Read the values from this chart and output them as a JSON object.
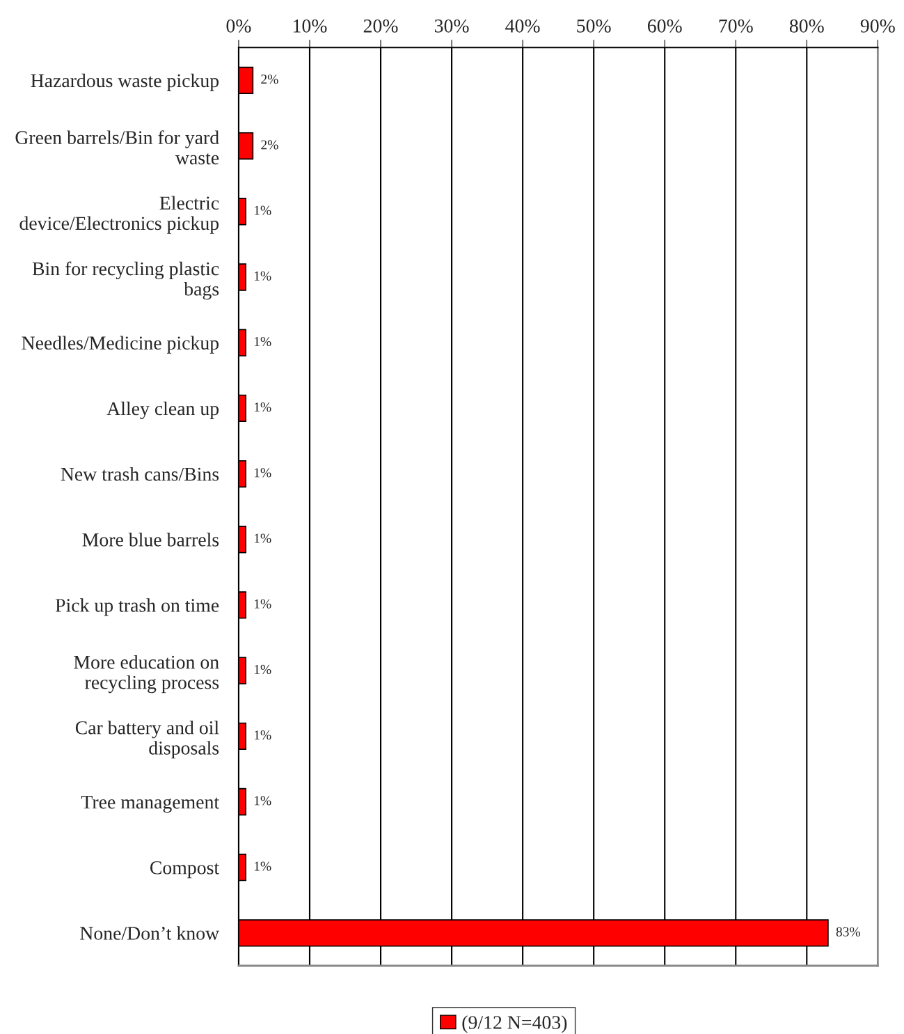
{
  "chart_data": {
    "type": "bar",
    "orientation": "horizontal",
    "categories": [
      "Hazardous waste pickup",
      "Green barrels/Bin for yard\nwaste",
      "Electric\ndevice/Electronics pickup",
      "Bin for recycling plastic\nbags",
      "Needles/Medicine pickup",
      "Alley clean up",
      "New trash cans/Bins",
      "More blue barrels",
      "Pick up trash on time",
      "More education on\nrecycling process",
      "Car battery and oil\ndisposals",
      "Tree management",
      "Compost",
      "None/Don’t know"
    ],
    "series": [
      {
        "name": "(9/12 N=403)",
        "color": "#ff0000",
        "values": [
          2,
          2,
          1,
          1,
          1,
          1,
          1,
          1,
          1,
          1,
          1,
          1,
          1,
          83
        ]
      }
    ],
    "value_labels": [
      "2%",
      "2%",
      "1%",
      "1%",
      "1%",
      "1%",
      "1%",
      "1%",
      "1%",
      "1%",
      "1%",
      "1%",
      "1%",
      "83%"
    ],
    "xlim": [
      0,
      90
    ],
    "xticks": [
      {
        "value": 0,
        "label": "0%"
      },
      {
        "value": 10,
        "label": "10%"
      },
      {
        "value": 20,
        "label": "20%"
      },
      {
        "value": 30,
        "label": "30%"
      },
      {
        "value": 40,
        "label": "40%"
      },
      {
        "value": 50,
        "label": "50%"
      },
      {
        "value": 60,
        "label": "60%"
      },
      {
        "value": 70,
        "label": "70%"
      },
      {
        "value": 80,
        "label": "80%"
      },
      {
        "value": 90,
        "label": "90%"
      }
    ],
    "grid": "x",
    "legend": "bottom"
  }
}
